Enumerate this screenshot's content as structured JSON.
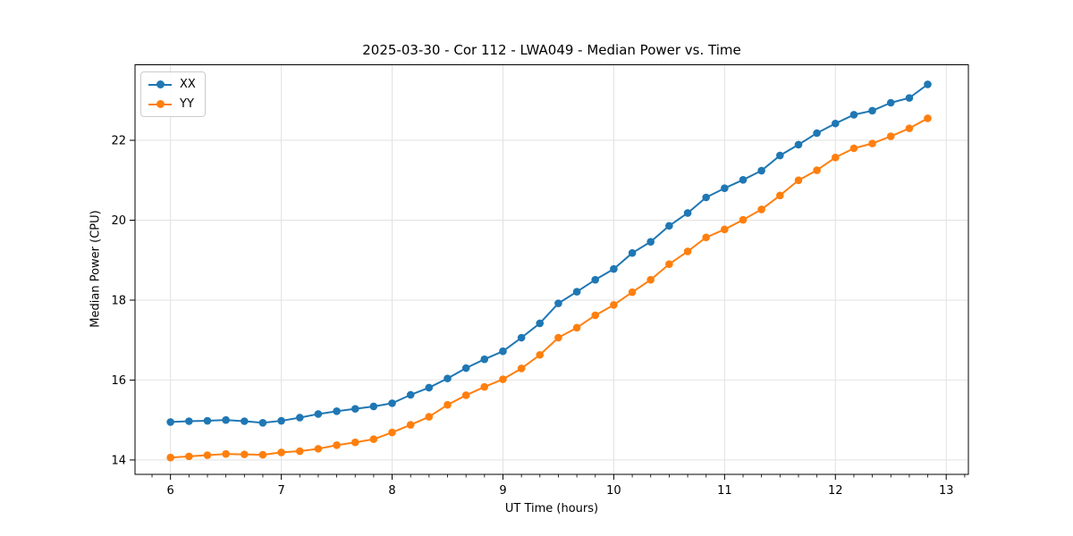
{
  "chart_data": {
    "type": "line",
    "title": "2025-03-30 - Cor 112 - LWA049 - Median Power vs. Time",
    "xlabel": "UT Time (hours)",
    "ylabel": "Median Power (CPU)",
    "xlim": [
      5.68,
      13.2
    ],
    "ylim": [
      13.64,
      23.89
    ],
    "x_ticks": [
      6,
      7,
      8,
      9,
      10,
      11,
      12,
      13
    ],
    "y_ticks": [
      14,
      16,
      18,
      20,
      22
    ],
    "x_minor_step": 0.16667,
    "grid": true,
    "legend_position": "upper-left",
    "marker": "circle",
    "x": [
      6.0,
      6.167,
      6.333,
      6.5,
      6.667,
      6.833,
      7.0,
      7.167,
      7.333,
      7.5,
      7.667,
      7.833,
      8.0,
      8.167,
      8.333,
      8.5,
      8.667,
      8.833,
      9.0,
      9.167,
      9.333,
      9.5,
      9.667,
      9.833,
      10.0,
      10.167,
      10.333,
      10.5,
      10.667,
      10.833,
      11.0,
      11.167,
      11.333,
      11.5,
      11.667,
      11.833,
      12.0,
      12.167,
      12.333,
      12.5,
      12.667,
      12.833
    ],
    "series": [
      {
        "name": "XX",
        "color": "#1f77b4",
        "values": [
          14.95,
          14.97,
          14.98,
          15.0,
          14.97,
          14.93,
          14.98,
          15.06,
          15.15,
          15.22,
          15.28,
          15.34,
          15.42,
          15.63,
          15.81,
          16.04,
          16.3,
          16.52,
          16.72,
          17.06,
          17.42,
          17.92,
          18.21,
          18.51,
          18.78,
          19.18,
          19.46,
          19.86,
          20.18,
          20.57,
          20.8,
          21.01,
          21.24,
          21.62,
          21.89,
          22.18,
          22.42,
          22.64,
          22.74,
          22.94,
          23.06,
          23.4
        ]
      },
      {
        "name": "YY",
        "color": "#ff7f0e",
        "values": [
          14.06,
          14.09,
          14.12,
          14.15,
          14.14,
          14.13,
          14.19,
          14.22,
          14.28,
          14.37,
          14.44,
          14.52,
          14.69,
          14.88,
          15.08,
          15.38,
          15.62,
          15.83,
          16.02,
          16.29,
          16.63,
          17.06,
          17.31,
          17.62,
          17.88,
          18.2,
          18.51,
          18.9,
          19.22,
          19.57,
          19.77,
          20.01,
          20.27,
          20.62,
          21.0,
          21.25,
          21.57,
          21.8,
          21.92,
          22.1,
          22.3,
          22.55
        ]
      }
    ]
  },
  "colors": {
    "background": "#ffffff",
    "grid": "#e2e2e2",
    "axis": "#000000",
    "legend_border": "#cccccc",
    "series_xx": "#1f77b4",
    "series_yy": "#ff7f0e"
  }
}
